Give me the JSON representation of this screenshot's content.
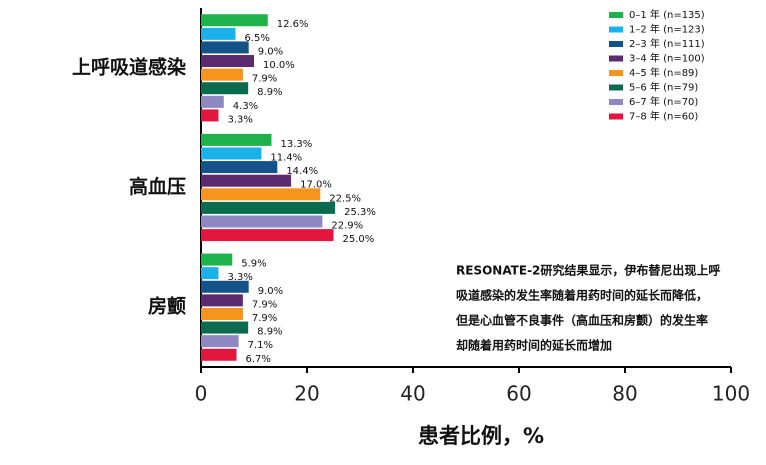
{
  "chart_data": {
    "type": "bar",
    "orientation": "horizontal",
    "categories": [
      "上呼吸道感染",
      "高血压",
      "房颤"
    ],
    "xlabel": "患者比例，%",
    "xlim": [
      0,
      100
    ],
    "xticks": [
      0,
      20,
      40,
      60,
      80,
      100
    ],
    "grid": false,
    "legend_position": "upper right",
    "series": [
      {
        "name": "0–1 年 (n=135)",
        "color": "#1db34a",
        "values": [
          12.6,
          13.3,
          5.9
        ],
        "value_labels": [
          "12.6%",
          "13.3%",
          "5.9%"
        ]
      },
      {
        "name": "1–2 年 (n=123)",
        "color": "#1ab0e8",
        "values": [
          6.5,
          11.4,
          3.3
        ],
        "value_labels": [
          "6.5%",
          "11.4%",
          "3.3%"
        ]
      },
      {
        "name": "2–3 年 (n=111)",
        "color": "#14528a",
        "values": [
          9.0,
          14.4,
          9.0
        ],
        "value_labels": [
          "9.0%",
          "14.4%",
          "9.0%"
        ]
      },
      {
        "name": "3–4 年 (n=100)",
        "color": "#5c2a6e",
        "values": [
          10.0,
          17.0,
          7.9
        ],
        "value_labels": [
          "10.0%",
          "17.0%",
          "7.9%"
        ]
      },
      {
        "name": "4–5 年 (n=89)",
        "color": "#f7941d",
        "values": [
          7.9,
          22.5,
          7.9
        ],
        "value_labels": [
          "7.9%",
          "22.5%",
          "7.9%"
        ]
      },
      {
        "name": "5–6 年 (n=79)",
        "color": "#0b6b4f",
        "values": [
          8.9,
          25.3,
          8.9
        ],
        "value_labels": [
          "8.9%",
          "25.3%",
          "8.9%"
        ]
      },
      {
        "name": "6–7 年 (n=70)",
        "color": "#8e87c2",
        "values": [
          4.3,
          22.9,
          7.1
        ],
        "value_labels": [
          "4.3%",
          "22.9%",
          "7.1%"
        ]
      },
      {
        "name": "7–8 年 (n=60)",
        "color": "#e3173e",
        "values": [
          3.3,
          25.0,
          6.7
        ],
        "value_labels": [
          "3.3%",
          "25.0%",
          "6.7%"
        ]
      }
    ],
    "annotation": [
      "RESONATE-2研究结果显示，伊布替尼出现上呼",
      "吸道感染的发生率随着用药时间的延长而降低，",
      "但是心血管不良事件（高血压和房颤）的发生率",
      "却随着用药时间的延长而增加"
    ]
  }
}
